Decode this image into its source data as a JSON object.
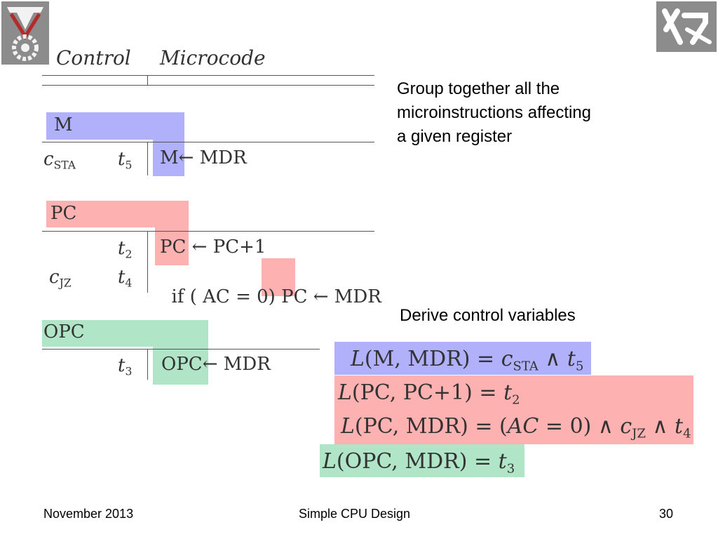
{
  "table_header": {
    "col1": "Control",
    "col2": "Microcode"
  },
  "groups": {
    "m": {
      "header": "M",
      "rows": [
        {
          "ctrl_base": "c",
          "ctrl_sub": "STA",
          "time_base": "t",
          "time_sub": "5",
          "dest": "M",
          "arrow": "←",
          "src": "MDR"
        }
      ]
    },
    "pc": {
      "header": "PC",
      "rows": [
        {
          "ctrl_base": "",
          "ctrl_sub": "",
          "time_base": "t",
          "time_sub": "2",
          "prefix": "",
          "dest": "PC",
          "arrow": "←",
          "src": "PC+1"
        },
        {
          "ctrl_base": "c",
          "ctrl_sub": "JZ",
          "time_base": "t",
          "time_sub": "4",
          "prefix": "if ( AC = 0) ",
          "dest": "PC",
          "arrow": "←",
          "src": "MDR"
        }
      ]
    },
    "opc": {
      "header": "OPC",
      "rows": [
        {
          "time_base": "t",
          "time_sub": "3",
          "dest": "OPC",
          "arrow": "←",
          "src": "MDR"
        }
      ]
    }
  },
  "notes": {
    "group_text": "Group together all the microinstructions affecting a given register",
    "derive_text": "Derive control variables"
  },
  "formulas": {
    "f1": {
      "L": "L",
      "args": "(M, MDR)",
      "eq": " = ",
      "rhs_c": "c",
      "rhs_c_sub": "STA",
      "and": " ∧ ",
      "rhs_t": "t",
      "rhs_t_sub": "5"
    },
    "f2": {
      "L": "L",
      "args": "(PC, PC+1)",
      "eq": " = ",
      "rhs_t": "t",
      "rhs_t_sub": "2"
    },
    "f3": {
      "L": "L",
      "args": "(PC, MDR)",
      "eq": " = (",
      "ac": "AC",
      "zero": " = 0) ∧ ",
      "rhs_c": "c",
      "rhs_c_sub": "JZ",
      "and": " ∧ ",
      "rhs_t": "t",
      "rhs_t_sub": "4"
    },
    "f4": {
      "L": "L",
      "args": "(OPC, MDR)",
      "eq": " = ",
      "rhs_t": "t",
      "rhs_t_sub": "3"
    }
  },
  "footer": {
    "date": "November 2013",
    "title": "Simple CPU Design",
    "page": "30"
  },
  "logos": {
    "left": "technion-logo",
    "right": "hebrew-university-logo"
  },
  "colors": {
    "blue": "#b1b1fb",
    "red": "#fdb1b1",
    "green": "#b1e5c8",
    "logo_gray": "#8c8c8c",
    "logo_red": "#b22a2a"
  }
}
